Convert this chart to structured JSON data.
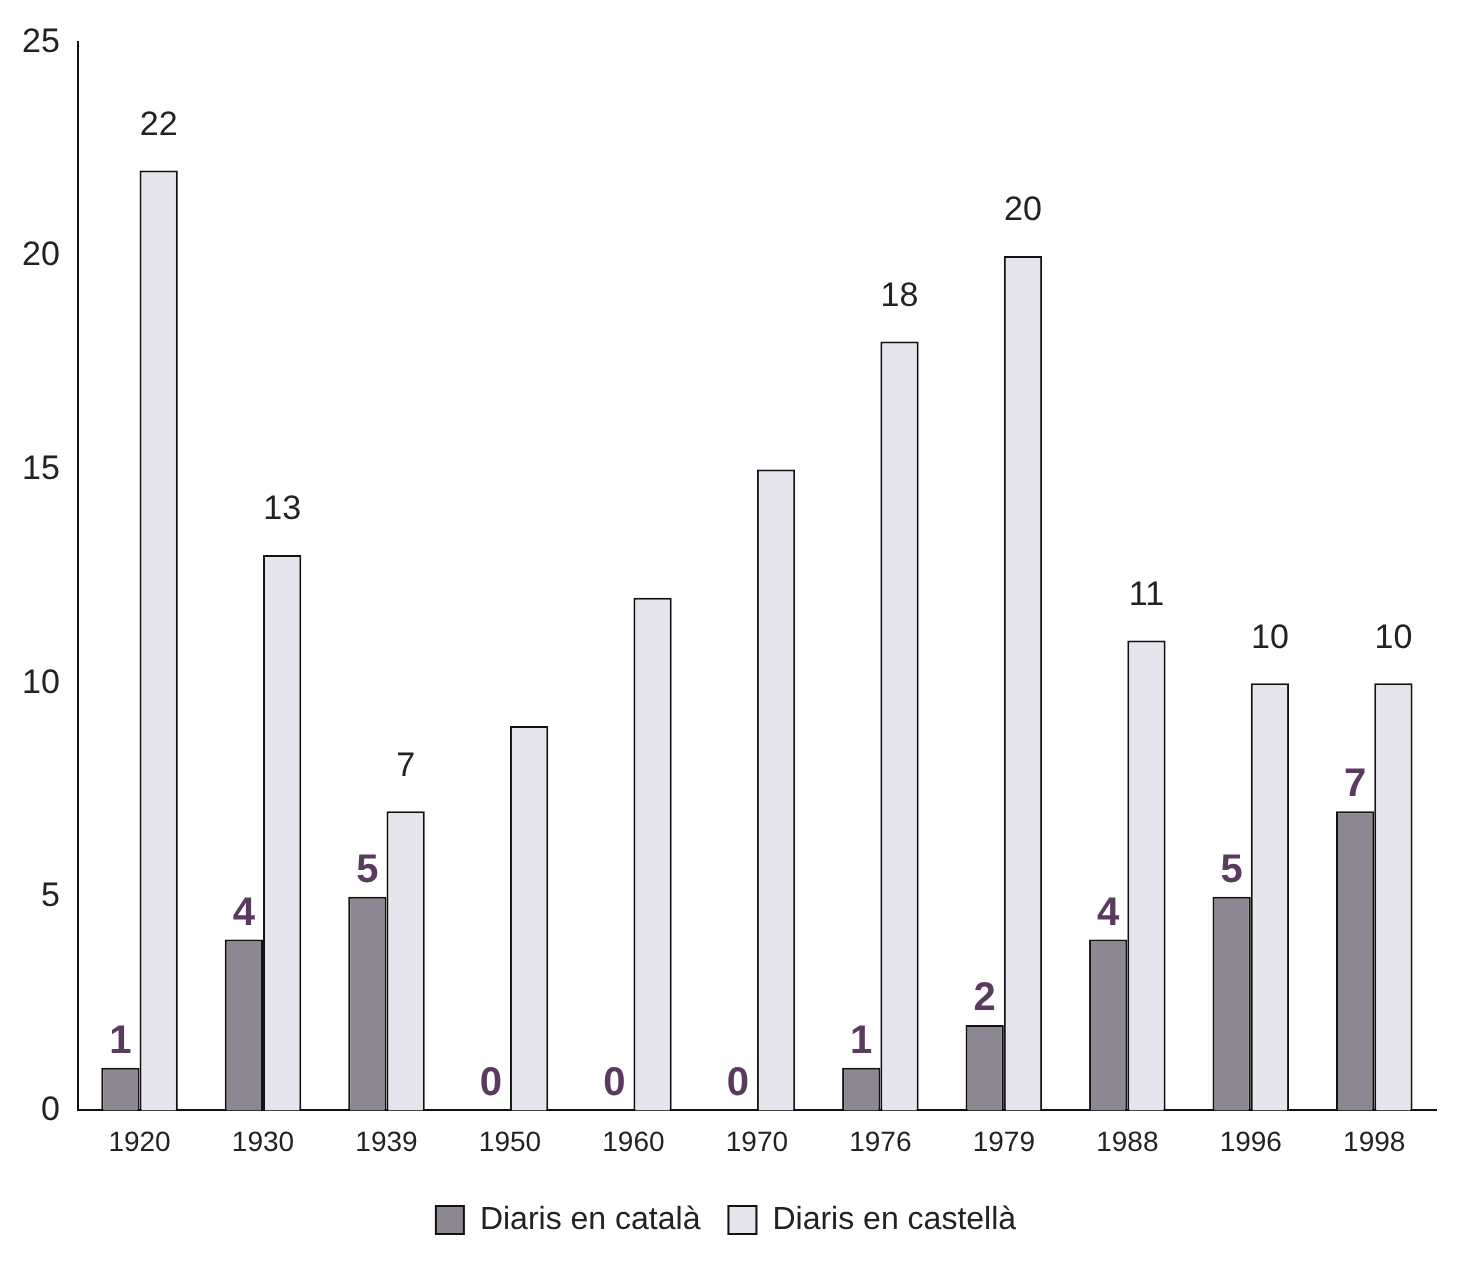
{
  "chart_data": {
    "type": "bar",
    "categories": [
      "1920",
      "1930",
      "1939",
      "1950",
      "1960",
      "1970",
      "1976",
      "1979",
      "1988",
      "1996",
      "1998"
    ],
    "series": [
      {
        "name": "Diaris en català",
        "color": "#8d8791",
        "values": [
          1,
          4,
          5,
          0,
          0,
          0,
          1,
          2,
          4,
          5,
          7
        ],
        "value_labels": [
          "1",
          "4",
          "5",
          "0",
          "0",
          "0",
          "1",
          "2",
          "4",
          "5",
          "7"
        ]
      },
      {
        "name": "Diaris en castellà",
        "color": "#e6e4ec",
        "values": [
          22,
          13,
          7,
          9,
          12,
          15,
          18,
          20,
          11,
          10,
          10
        ],
        "value_labels": [
          "22",
          "13",
          "7",
          null,
          null,
          null,
          "18",
          "20",
          "11",
          "10",
          "10"
        ]
      }
    ],
    "ylim": [
      0,
      25
    ],
    "yticks": [
      0,
      5,
      10,
      15,
      20,
      25
    ],
    "grid": false,
    "legend": "bottom"
  }
}
